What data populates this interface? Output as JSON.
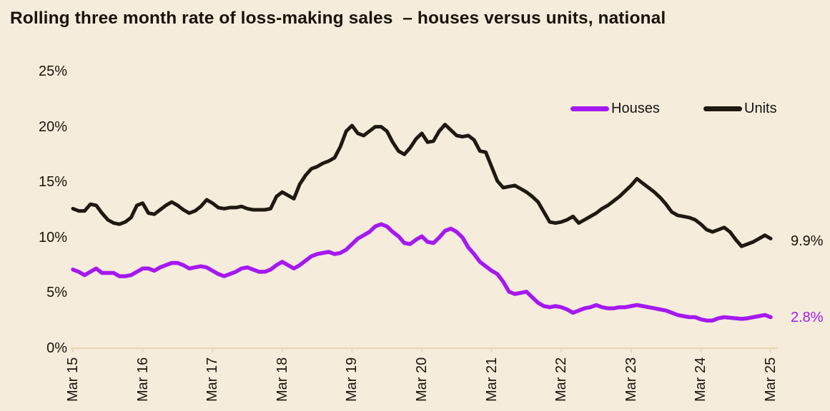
{
  "title": "Rolling three month rate of loss-making sales  – houses versus units, national",
  "colors": {
    "background": "#f5ecdb",
    "houses": "#a519f0",
    "units": "#201911",
    "text": "#1a130b",
    "axis": "#e8d9ba"
  },
  "chart_data": {
    "type": "line",
    "title": "Rolling three month rate of loss-making sales  – houses versus units, national",
    "x_frequency": "monthly",
    "categories": [
      "Mar 15",
      "Mar 16",
      "Mar 17",
      "Mar 18",
      "Mar 19",
      "Mar 20",
      "Mar 21",
      "Mar 22",
      "Mar 23",
      "Mar 24",
      "Mar 25"
    ],
    "months_per_category": 12,
    "ylim": [
      0,
      25
    ],
    "y_ticks": [
      {
        "label": "25%",
        "value": 25
      },
      {
        "label": "20%",
        "value": 20
      },
      {
        "label": "15%",
        "value": 15
      },
      {
        "label": "10%",
        "value": 10
      },
      {
        "label": "5%",
        "value": 5
      },
      {
        "label": "0%",
        "value": 0
      }
    ],
    "grid": false,
    "legend_position": "top-right",
    "series": [
      {
        "name": "Houses",
        "color": "#a519f0",
        "end_label": "2.8%",
        "values": [
          7.1,
          6.9,
          6.6,
          6.9,
          7.2,
          6.8,
          6.8,
          6.8,
          6.5,
          6.5,
          6.6,
          6.9,
          7.2,
          7.2,
          7.0,
          7.3,
          7.5,
          7.7,
          7.7,
          7.5,
          7.2,
          7.3,
          7.4,
          7.3,
          7.0,
          6.7,
          6.5,
          6.7,
          6.9,
          7.2,
          7.3,
          7.1,
          6.9,
          6.9,
          7.1,
          7.5,
          7.8,
          7.5,
          7.2,
          7.5,
          7.9,
          8.3,
          8.5,
          8.6,
          8.7,
          8.5,
          8.6,
          8.9,
          9.4,
          9.9,
          10.2,
          10.5,
          11.0,
          11.2,
          11.0,
          10.5,
          10.1,
          9.5,
          9.4,
          9.8,
          10.1,
          9.6,
          9.5,
          10.0,
          10.6,
          10.8,
          10.5,
          10.0,
          9.1,
          8.5,
          7.8,
          7.4,
          7.0,
          6.7,
          6.0,
          5.1,
          4.9,
          5.0,
          5.1,
          4.6,
          4.1,
          3.8,
          3.7,
          3.8,
          3.7,
          3.5,
          3.2,
          3.4,
          3.6,
          3.7,
          3.9,
          3.7,
          3.6,
          3.6,
          3.7,
          3.7,
          3.8,
          3.9,
          3.8,
          3.7,
          3.6,
          3.5,
          3.4,
          3.2,
          3.0,
          2.9,
          2.8,
          2.8,
          2.6,
          2.5,
          2.5,
          2.7,
          2.8,
          2.75,
          2.7,
          2.65,
          2.7,
          2.8,
          2.9,
          3.0,
          2.8
        ]
      },
      {
        "name": "Units",
        "color": "#201911",
        "end_label": "9.9%",
        "values": [
          12.6,
          12.4,
          12.4,
          13.0,
          12.9,
          12.2,
          11.6,
          11.3,
          11.2,
          11.4,
          11.8,
          12.9,
          13.1,
          12.2,
          12.1,
          12.5,
          12.9,
          13.2,
          12.9,
          12.5,
          12.2,
          12.4,
          12.8,
          13.4,
          13.1,
          12.7,
          12.6,
          12.7,
          12.7,
          12.8,
          12.6,
          12.5,
          12.5,
          12.5,
          12.6,
          13.7,
          14.1,
          13.8,
          13.5,
          14.8,
          15.6,
          16.2,
          16.4,
          16.7,
          16.9,
          17.2,
          18.2,
          19.6,
          20.1,
          19.4,
          19.2,
          19.6,
          20.0,
          20.0,
          19.6,
          18.6,
          17.8,
          17.5,
          18.1,
          18.9,
          19.4,
          18.6,
          18.7,
          19.6,
          20.2,
          19.7,
          19.2,
          19.1,
          19.2,
          18.8,
          17.8,
          17.7,
          16.4,
          15.1,
          14.5,
          14.6,
          14.7,
          14.4,
          14.1,
          13.7,
          13.2,
          12.3,
          11.4,
          11.3,
          11.4,
          11.6,
          11.9,
          11.3,
          11.6,
          11.9,
          12.2,
          12.6,
          12.9,
          13.3,
          13.7,
          14.2,
          14.7,
          15.3,
          14.9,
          14.5,
          14.1,
          13.6,
          13.0,
          12.3,
          12.0,
          11.9,
          11.8,
          11.6,
          11.2,
          10.7,
          10.5,
          10.7,
          10.9,
          10.5,
          9.8,
          9.2,
          9.4,
          9.6,
          9.9,
          10.2,
          9.9
        ]
      }
    ]
  }
}
